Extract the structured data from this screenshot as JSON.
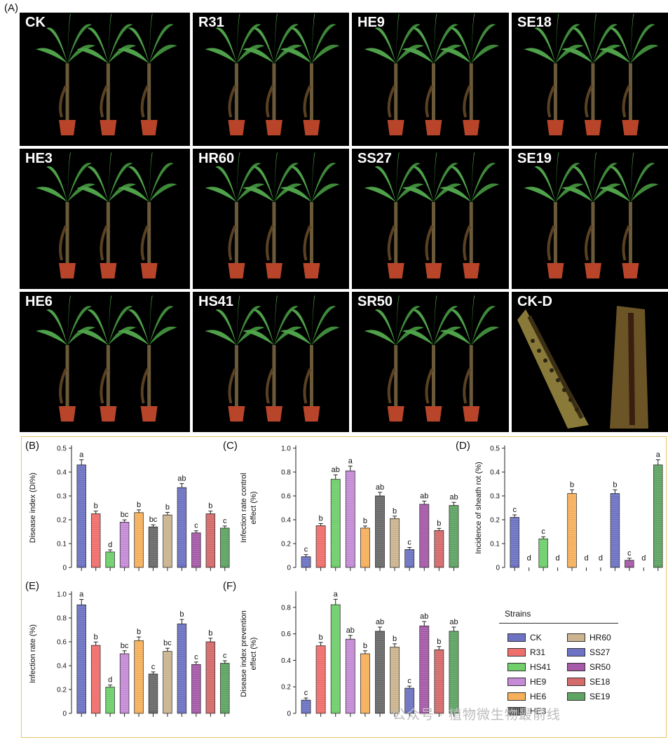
{
  "figure": {
    "label_a": "(A)",
    "photo_labels": [
      "CK",
      "R31",
      "HE9",
      "SE18",
      "HE3",
      "HR60",
      "SS27",
      "SE19",
      "HE6",
      "HS41",
      "SR50",
      "CK-D"
    ],
    "watermark": "公众号 · 植物微生物最前线"
  },
  "legend": {
    "title": "Strains",
    "items": [
      {
        "label": "CK",
        "color": "#6d73c2"
      },
      {
        "label": "R31",
        "color": "#ef6f6c"
      },
      {
        "label": "HS41",
        "color": "#6fcf6b"
      },
      {
        "label": "HE9",
        "color": "#c58bd6"
      },
      {
        "label": "HE6",
        "color": "#f6b05c"
      },
      {
        "label": "HE3",
        "color": "#555555"
      },
      {
        "label": "HR60",
        "color": "#cbb48f"
      },
      {
        "label": "SS27",
        "color": "#6d73c2"
      },
      {
        "label": "SR50",
        "color": "#a65aa8"
      },
      {
        "label": "SE18",
        "color": "#d46a6a"
      },
      {
        "label": "SE19",
        "color": "#5fa463"
      }
    ]
  },
  "chart_data": [
    {
      "panel": "(B)",
      "type": "bar",
      "ylabel": "Disease index (DI%)",
      "ylim": [
        0,
        0.5
      ],
      "yticks": [
        "0",
        "0.1",
        "0.2",
        "0.3",
        "0.4",
        "0.5"
      ],
      "categories": [
        "CK",
        "R31",
        "HS41",
        "HE9",
        "HE6",
        "HE3",
        "HR60",
        "SS27",
        "SR50",
        "SE18",
        "SE19"
      ],
      "values": [
        0.43,
        0.225,
        0.065,
        0.19,
        0.23,
        0.17,
        0.22,
        0.335,
        0.145,
        0.225,
        0.165
      ],
      "letters": [
        "a",
        "b",
        "d",
        "bc",
        "b",
        "bc",
        "b",
        "ab",
        "c",
        "b",
        "c"
      ]
    },
    {
      "panel": "(C)",
      "type": "bar",
      "ylabel": "Infection rate control effect (%)",
      "ylim": [
        0,
        1.0
      ],
      "yticks": [
        "0",
        "0.2",
        "0.4",
        "0.6",
        "0.8",
        "1.0"
      ],
      "categories": [
        "CK",
        "R31",
        "HS41",
        "HE9",
        "HE6",
        "HE3",
        "HR60",
        "SS27",
        "SR50",
        "SE18",
        "SE19"
      ],
      "values": [
        0.09,
        0.35,
        0.74,
        0.81,
        0.33,
        0.6,
        0.41,
        0.15,
        0.53,
        0.31,
        0.52
      ],
      "letters": [
        "c",
        "b",
        "ab",
        "a",
        "b",
        "ab",
        "b",
        "c",
        "ab",
        "b",
        "ab"
      ]
    },
    {
      "panel": "(D)",
      "type": "bar",
      "ylabel": "Incidence of sheath rot (%)",
      "ylim": [
        0,
        0.5
      ],
      "yticks": [
        "0",
        "0.1",
        "0.2",
        "0.3",
        "0.4",
        "0.5"
      ],
      "categories": [
        "CK",
        "R31",
        "HS41",
        "HE9",
        "HE6",
        "HE3",
        "HR60",
        "SS27",
        "SR50",
        "SE18",
        "SE19"
      ],
      "values": [
        0.21,
        0,
        0.12,
        0,
        0.31,
        0,
        0,
        0.31,
        0.03,
        0,
        0.43
      ],
      "letters": [
        "c",
        "d",
        "c",
        "d",
        "b",
        "d",
        "d",
        "b",
        "c",
        "d",
        "a"
      ]
    },
    {
      "panel": "(E)",
      "type": "bar",
      "ylabel": "Infection rate (%)",
      "ylim": [
        0,
        1.0
      ],
      "yticks": [
        "0",
        "0.2",
        "0.4",
        "0.6",
        "0.8",
        "1.0"
      ],
      "categories": [
        "CK",
        "R31",
        "HS41",
        "HE9",
        "HE6",
        "HE3",
        "HR60",
        "SS27",
        "SR50",
        "SE18",
        "SE19"
      ],
      "values": [
        0.91,
        0.57,
        0.22,
        0.5,
        0.61,
        0.33,
        0.52,
        0.75,
        0.41,
        0.6,
        0.42
      ],
      "letters": [
        "a",
        "b",
        "d",
        "bc",
        "b",
        "c",
        "bc",
        "b",
        "c",
        "b",
        "c"
      ]
    },
    {
      "panel": "(F)",
      "type": "bar",
      "ylabel": "Disease index prevention effect (%)",
      "ylim": [
        0,
        0.9
      ],
      "yticks": [
        "0",
        "0.2",
        "0.4",
        "0.6",
        "0.8"
      ],
      "categories": [
        "CK",
        "R31",
        "HS41",
        "HE9",
        "HE6",
        "HE3",
        "HR60",
        "SS27",
        "SR50",
        "SE18",
        "SE19"
      ],
      "values": [
        0.1,
        0.51,
        0.82,
        0.56,
        0.45,
        0.62,
        0.5,
        0.19,
        0.66,
        0.48,
        0.62
      ],
      "letters": [
        "c",
        "b",
        "a",
        "ab",
        "b",
        "ab",
        "b",
        "c",
        "ab",
        "b",
        "ab"
      ]
    }
  ]
}
